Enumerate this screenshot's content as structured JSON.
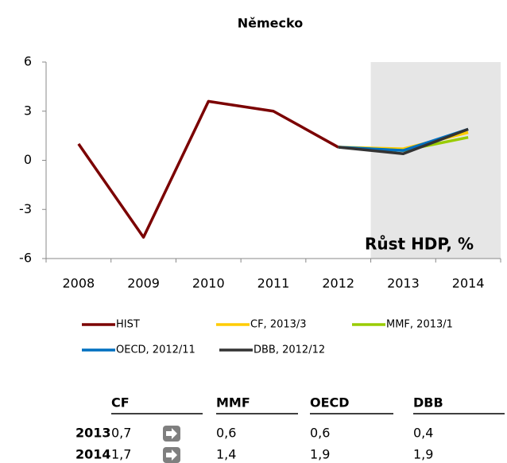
{
  "chart_data": {
    "type": "line",
    "title": "Německo",
    "annotation": "Růst HDP, %",
    "categories": [
      "2008",
      "2009",
      "2010",
      "2011",
      "2012",
      "2013",
      "2014"
    ],
    "forecast_start": "2013",
    "series": [
      {
        "name": "HIST",
        "color": "#7b0000",
        "values": [
          1.0,
          -4.7,
          3.6,
          3.0,
          0.8,
          null,
          null
        ]
      },
      {
        "name": "CF, 2013/3",
        "color": "#ffcc00",
        "values": [
          null,
          null,
          null,
          null,
          0.8,
          0.7,
          1.7
        ]
      },
      {
        "name": "MMF, 2013/1",
        "color": "#99cc00",
        "values": [
          null,
          null,
          null,
          null,
          0.8,
          0.6,
          1.4
        ]
      },
      {
        "name": "OECD, 2012/11",
        "color": "#0070c0",
        "values": [
          null,
          null,
          null,
          null,
          0.8,
          0.6,
          1.9
        ]
      },
      {
        "name": "DBB, 2012/12",
        "color": "#333333",
        "values": [
          null,
          null,
          null,
          null,
          0.8,
          0.4,
          1.9
        ]
      }
    ],
    "ylim": [
      -6,
      6
    ],
    "yticks": [
      -6,
      -3,
      0,
      3,
      6
    ],
    "grid": false
  },
  "table": {
    "columns": [
      "CF",
      "MMF",
      "OECD",
      "DBB"
    ],
    "rows": [
      [
        "2013",
        "0,7",
        "0,6",
        "0,6",
        "0,4"
      ],
      [
        "2014",
        "1,7",
        "1,4",
        "1,9",
        "1,9"
      ]
    ]
  }
}
